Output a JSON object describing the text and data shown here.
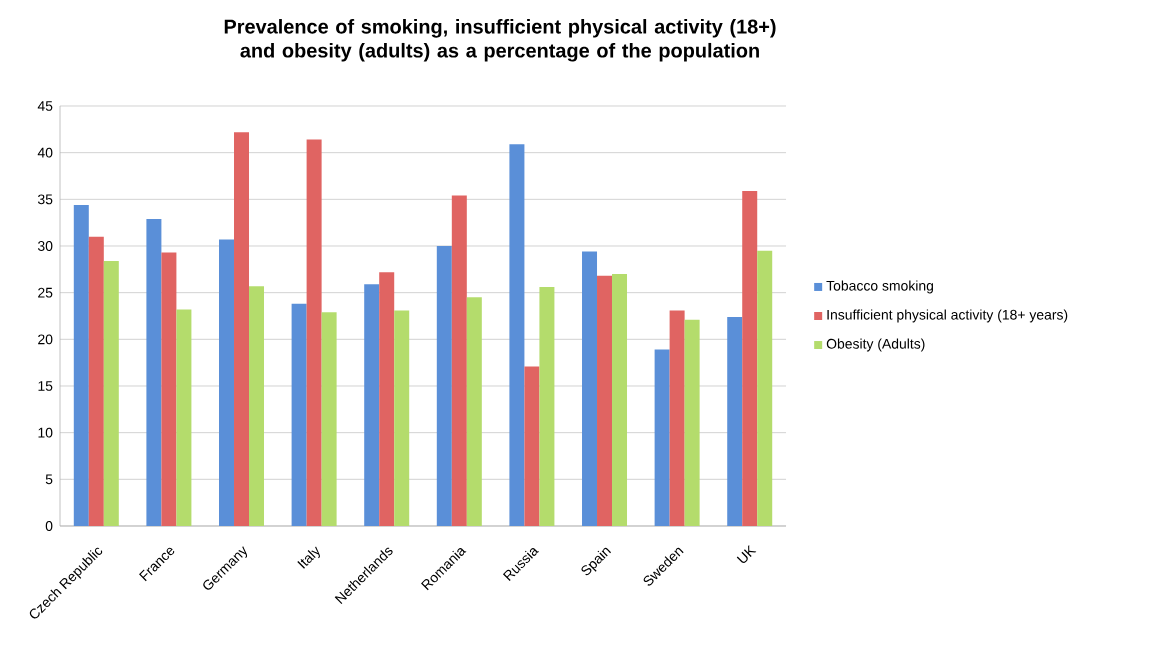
{
  "chart_data": {
    "type": "bar",
    "title": "Prevalence of smoking, insufficient physical activity (18+) and obesity (adults) as a percentage of the population",
    "categories": [
      "Czech Republic",
      "France",
      "Germany",
      "Italy",
      "Netherlands",
      "Romania",
      "Russia",
      "Spain",
      "Sweden",
      "UK"
    ],
    "series": [
      {
        "name": "Tobacco smoking",
        "color": "#5a8fd8",
        "values": [
          34.4,
          32.9,
          30.7,
          23.8,
          25.9,
          30.0,
          40.9,
          29.4,
          18.9,
          22.4
        ]
      },
      {
        "name": "Insufficient physical activity (18+ years)",
        "color": "#e06462",
        "values": [
          31.0,
          29.3,
          42.2,
          41.4,
          27.2,
          35.4,
          17.1,
          26.8,
          23.1,
          35.9
        ]
      },
      {
        "name": "Obesity (Adults)",
        "color": "#b4dc6c",
        "values": [
          28.4,
          23.2,
          25.7,
          22.9,
          23.1,
          24.5,
          25.6,
          27.0,
          22.1,
          29.5
        ]
      }
    ],
    "ylim": [
      0,
      45
    ],
    "yticks": [
      0,
      5,
      10,
      15,
      20,
      25,
      30,
      35,
      40,
      45
    ],
    "grid": "y",
    "legend": "right"
  }
}
